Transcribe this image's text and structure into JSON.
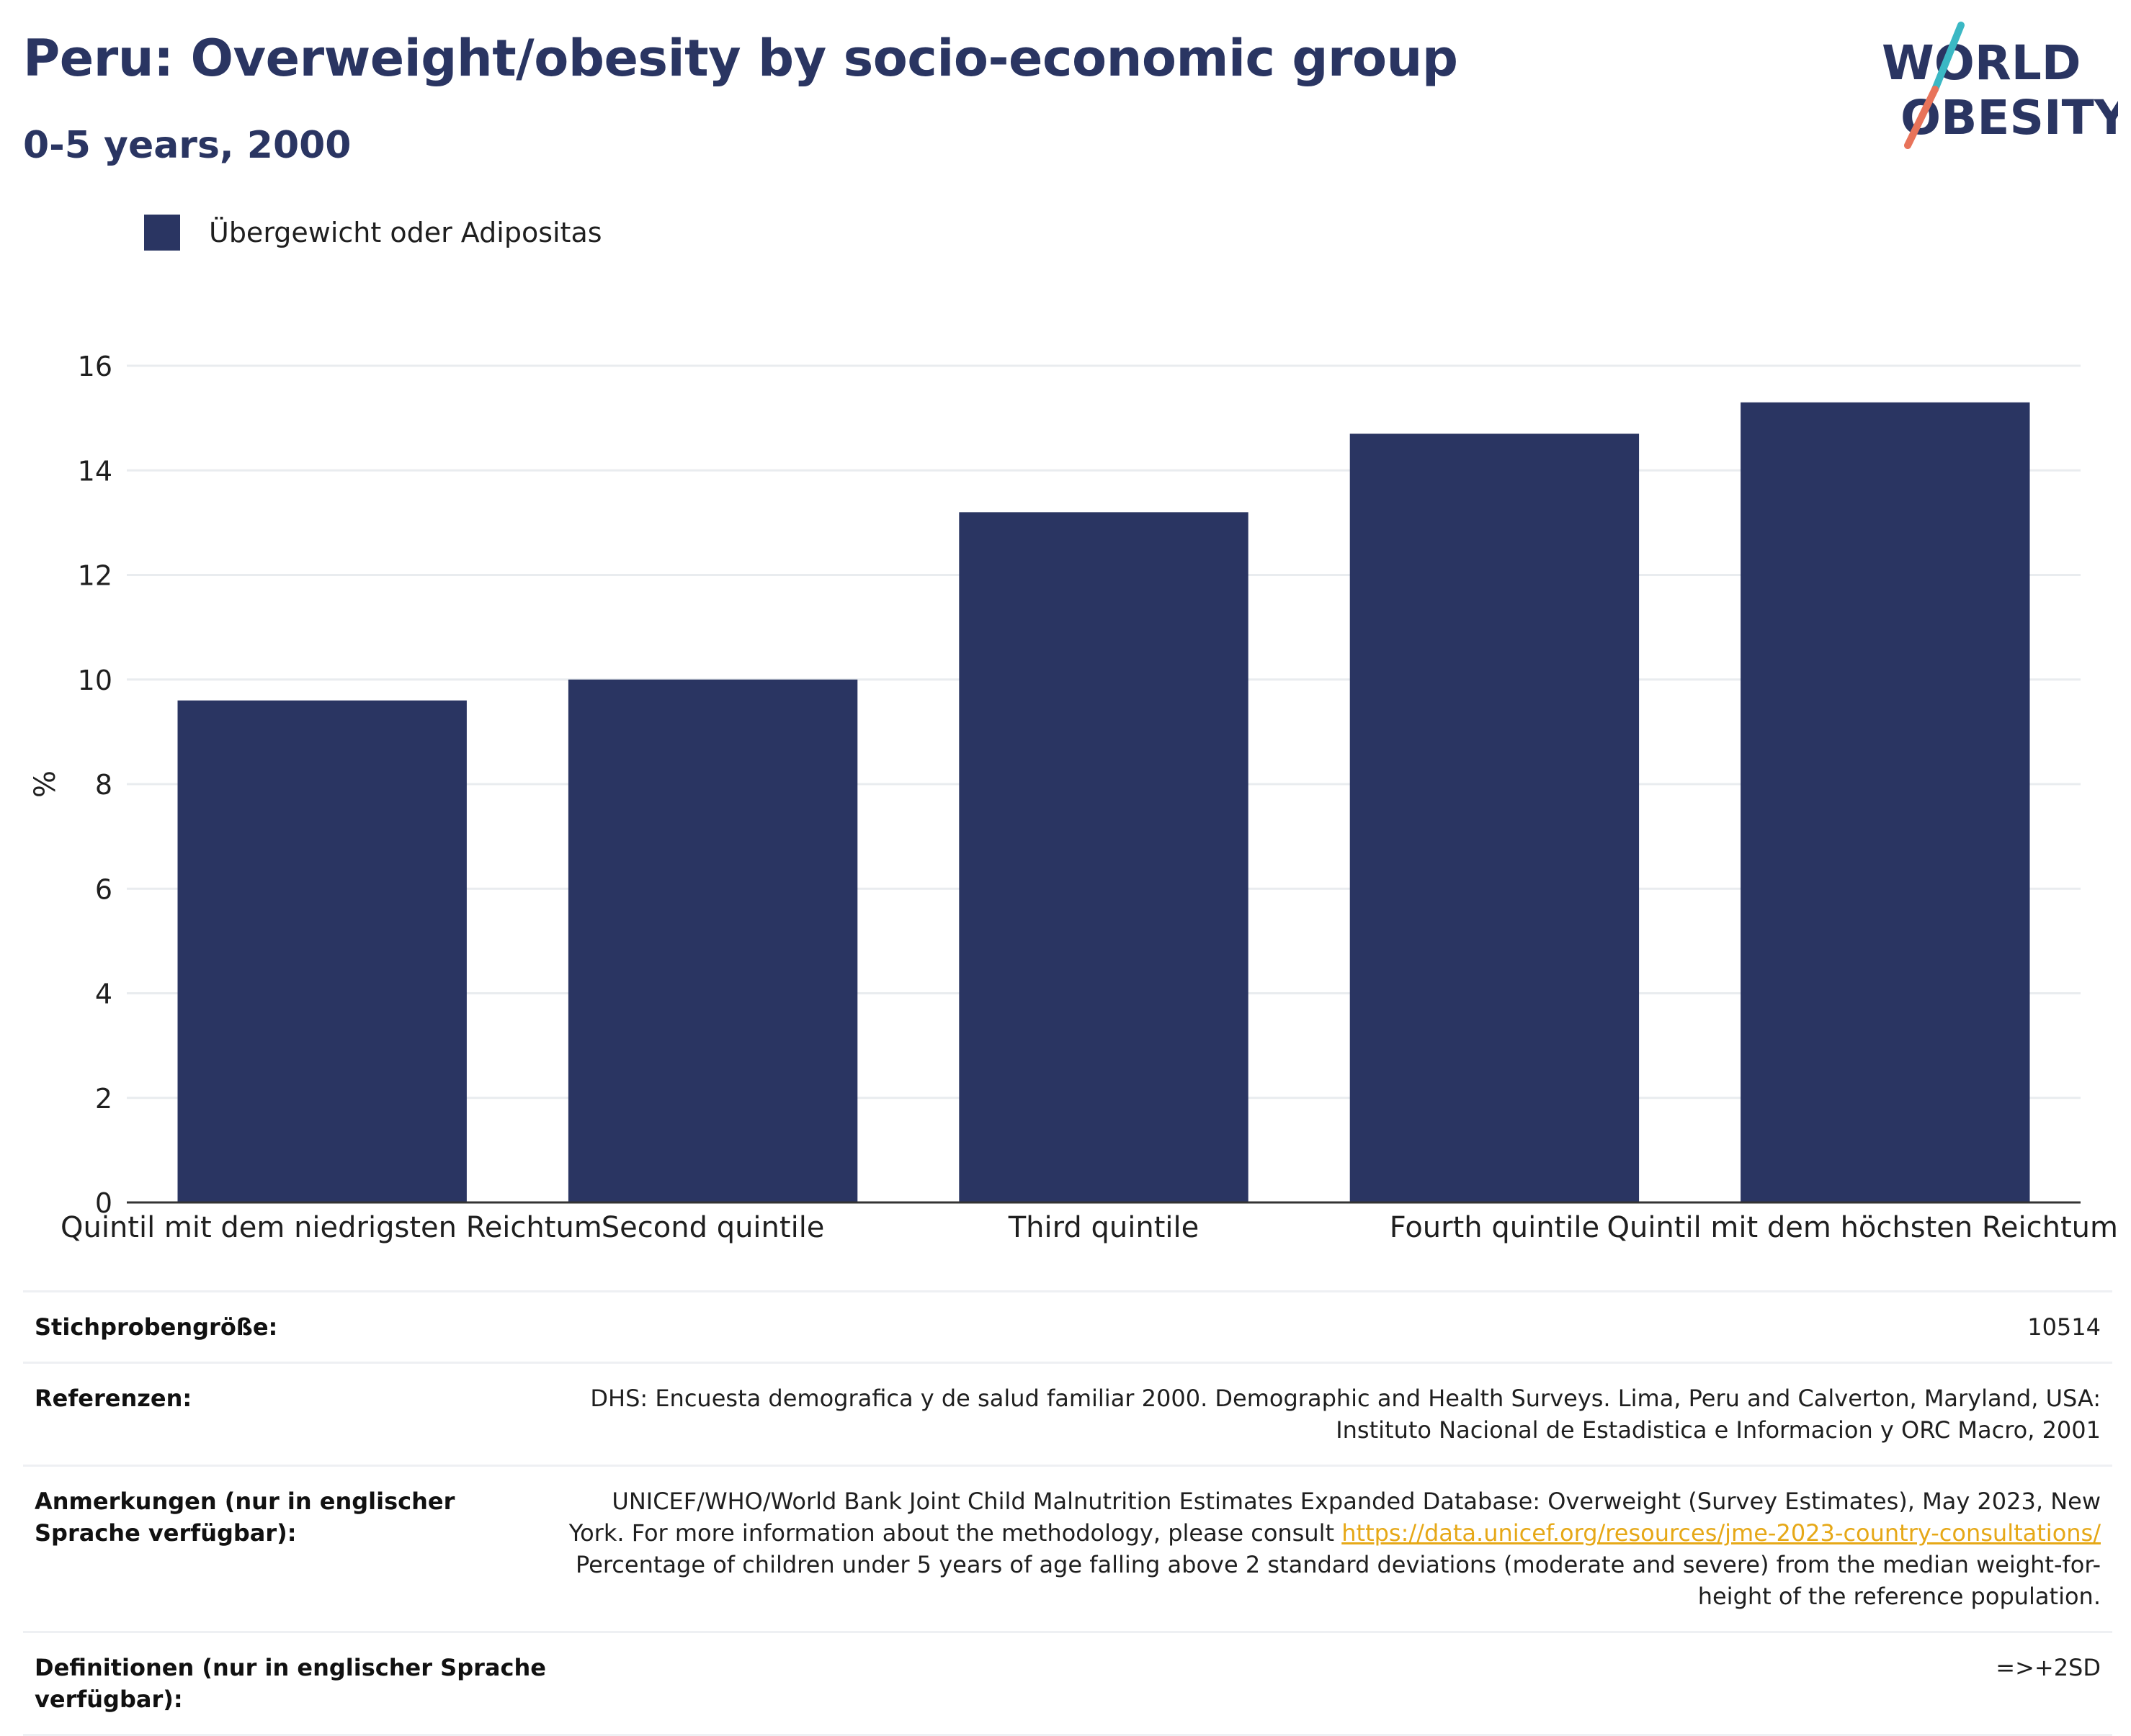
{
  "header": {
    "title": "Peru: Overweight/obesity by socio-economic group",
    "subtitle": "0-5 years, 2000"
  },
  "logo": {
    "line1": "WORLD",
    "line2": "OBESITY",
    "colors": {
      "text": "#2a3562",
      "slash_top": "#3bb8c4",
      "slash_bottom": "#e8735a"
    }
  },
  "legend": {
    "label": "Übergewicht oder Adipositas",
    "color": "#2a3562"
  },
  "chart_data": {
    "type": "bar",
    "categories": [
      "Quintil mit dem niedrigsten Reichtum",
      "Second quintile",
      "Third quintile",
      "Fourth quintile",
      "Quintil mit dem höchsten Reichtum"
    ],
    "series": [
      {
        "name": "Übergewicht oder Adipositas",
        "values": [
          9.6,
          10.0,
          13.2,
          14.7,
          15.3
        ],
        "color": "#2a3562"
      }
    ],
    "ylabel": "%",
    "ylim": [
      0,
      16
    ],
    "yticks": [
      0,
      2,
      4,
      6,
      8,
      10,
      12,
      14,
      16
    ],
    "grid": true,
    "legend_position": "top-left"
  },
  "info": {
    "rows": [
      {
        "key": "Stichprobengröße:",
        "value": "10514"
      },
      {
        "key": "Referenzen:",
        "value": "DHS: Encuesta demografica y de salud familiar 2000. Demographic and Health Surveys. Lima, Peru and Calverton, Maryland, USA: Instituto Nacional de Estadistica e Informacion y ORC Macro, 2001"
      },
      {
        "key": "Anmerkungen (nur in englischer Sprache verfügbar):",
        "value_before": "UNICEF/WHO/World Bank Joint Child Malnutrition Estimates Expanded Database: Overweight (Survey Estimates), May 2023, New York. For more information about the methodology, please consult ",
        "link": "https://data.unicef.org/resources/jme-2023-country-consultations/",
        "value_after": " Percentage of children under 5 years of age falling above 2 standard deviations (moderate and severe) from the median weight-for-height of the reference population."
      },
      {
        "key": "Definitionen (nur in englischer Sprache verfügbar):",
        "value": "=>+2SD"
      }
    ]
  }
}
